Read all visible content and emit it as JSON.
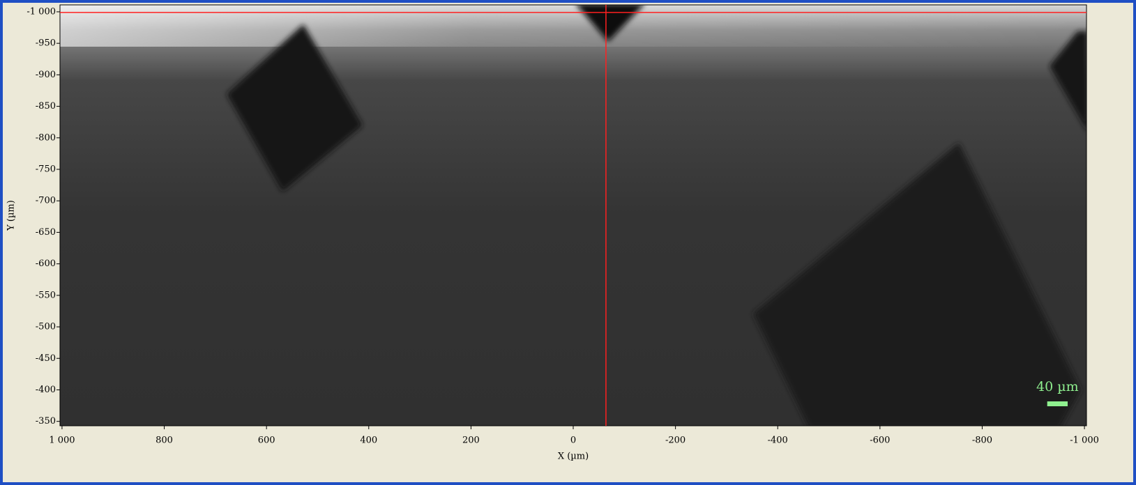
{
  "chart_data": {
    "type": "image",
    "xlabel": "X (µm)",
    "ylabel": "Y (µm)",
    "xlim": [
      1004,
      -1004
    ],
    "xticks": [
      {
        "value": 1000,
        "label": "1 000"
      },
      800,
      600,
      400,
      200,
      0,
      -200,
      -400,
      -600,
      -800,
      {
        "value": -1000,
        "label": "-1 000"
      }
    ],
    "ylim": [
      -343,
      -1011
    ],
    "yticks": [
      {
        "value": -1000,
        "label": "-1 000"
      },
      -950,
      -900,
      -850,
      -800,
      -750,
      -700,
      -650,
      -600,
      -550,
      -500,
      -450,
      -400,
      -350
    ],
    "crosshair": {
      "x": -64,
      "y": -999,
      "color": "#ff2020"
    },
    "scale_bar": {
      "value": 40,
      "label": "40 µm",
      "color": "#8ff08f"
    }
  }
}
